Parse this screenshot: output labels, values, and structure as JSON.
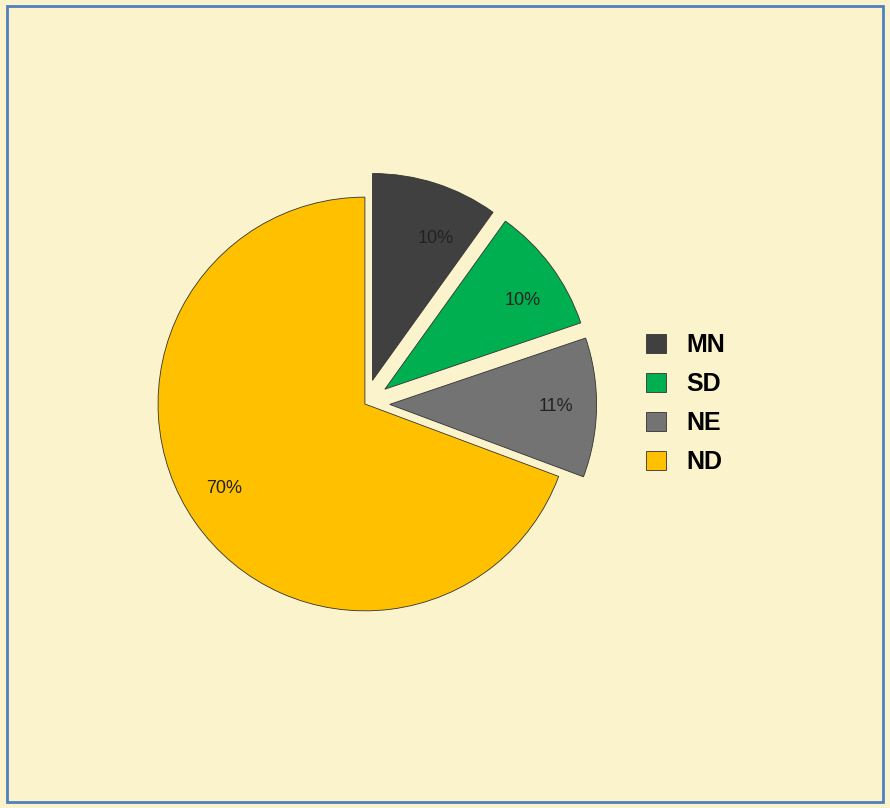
{
  "chart_data": {
    "type": "pie",
    "categories": [
      "MN",
      "SD",
      "NE",
      "ND"
    ],
    "values": [
      10,
      10,
      11,
      70
    ],
    "value_labels": [
      "10%",
      "10%",
      "11%",
      "70%"
    ],
    "colors": [
      "#404040",
      "#00b050",
      "#737373",
      "#ffc000"
    ],
    "data_labels": true,
    "legend": "right"
  }
}
